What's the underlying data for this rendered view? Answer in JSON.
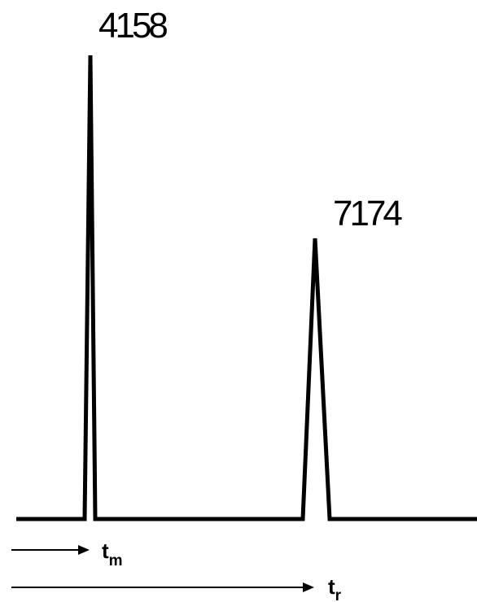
{
  "peaks": [
    {
      "label": "4158"
    },
    {
      "label": "7174"
    }
  ],
  "time_markers": [
    {
      "symbol": "t",
      "subscript": "m"
    },
    {
      "symbol": "t",
      "subscript": "r"
    }
  ],
  "colors": {
    "ink": "#000000",
    "background": "#ffffff"
  }
}
